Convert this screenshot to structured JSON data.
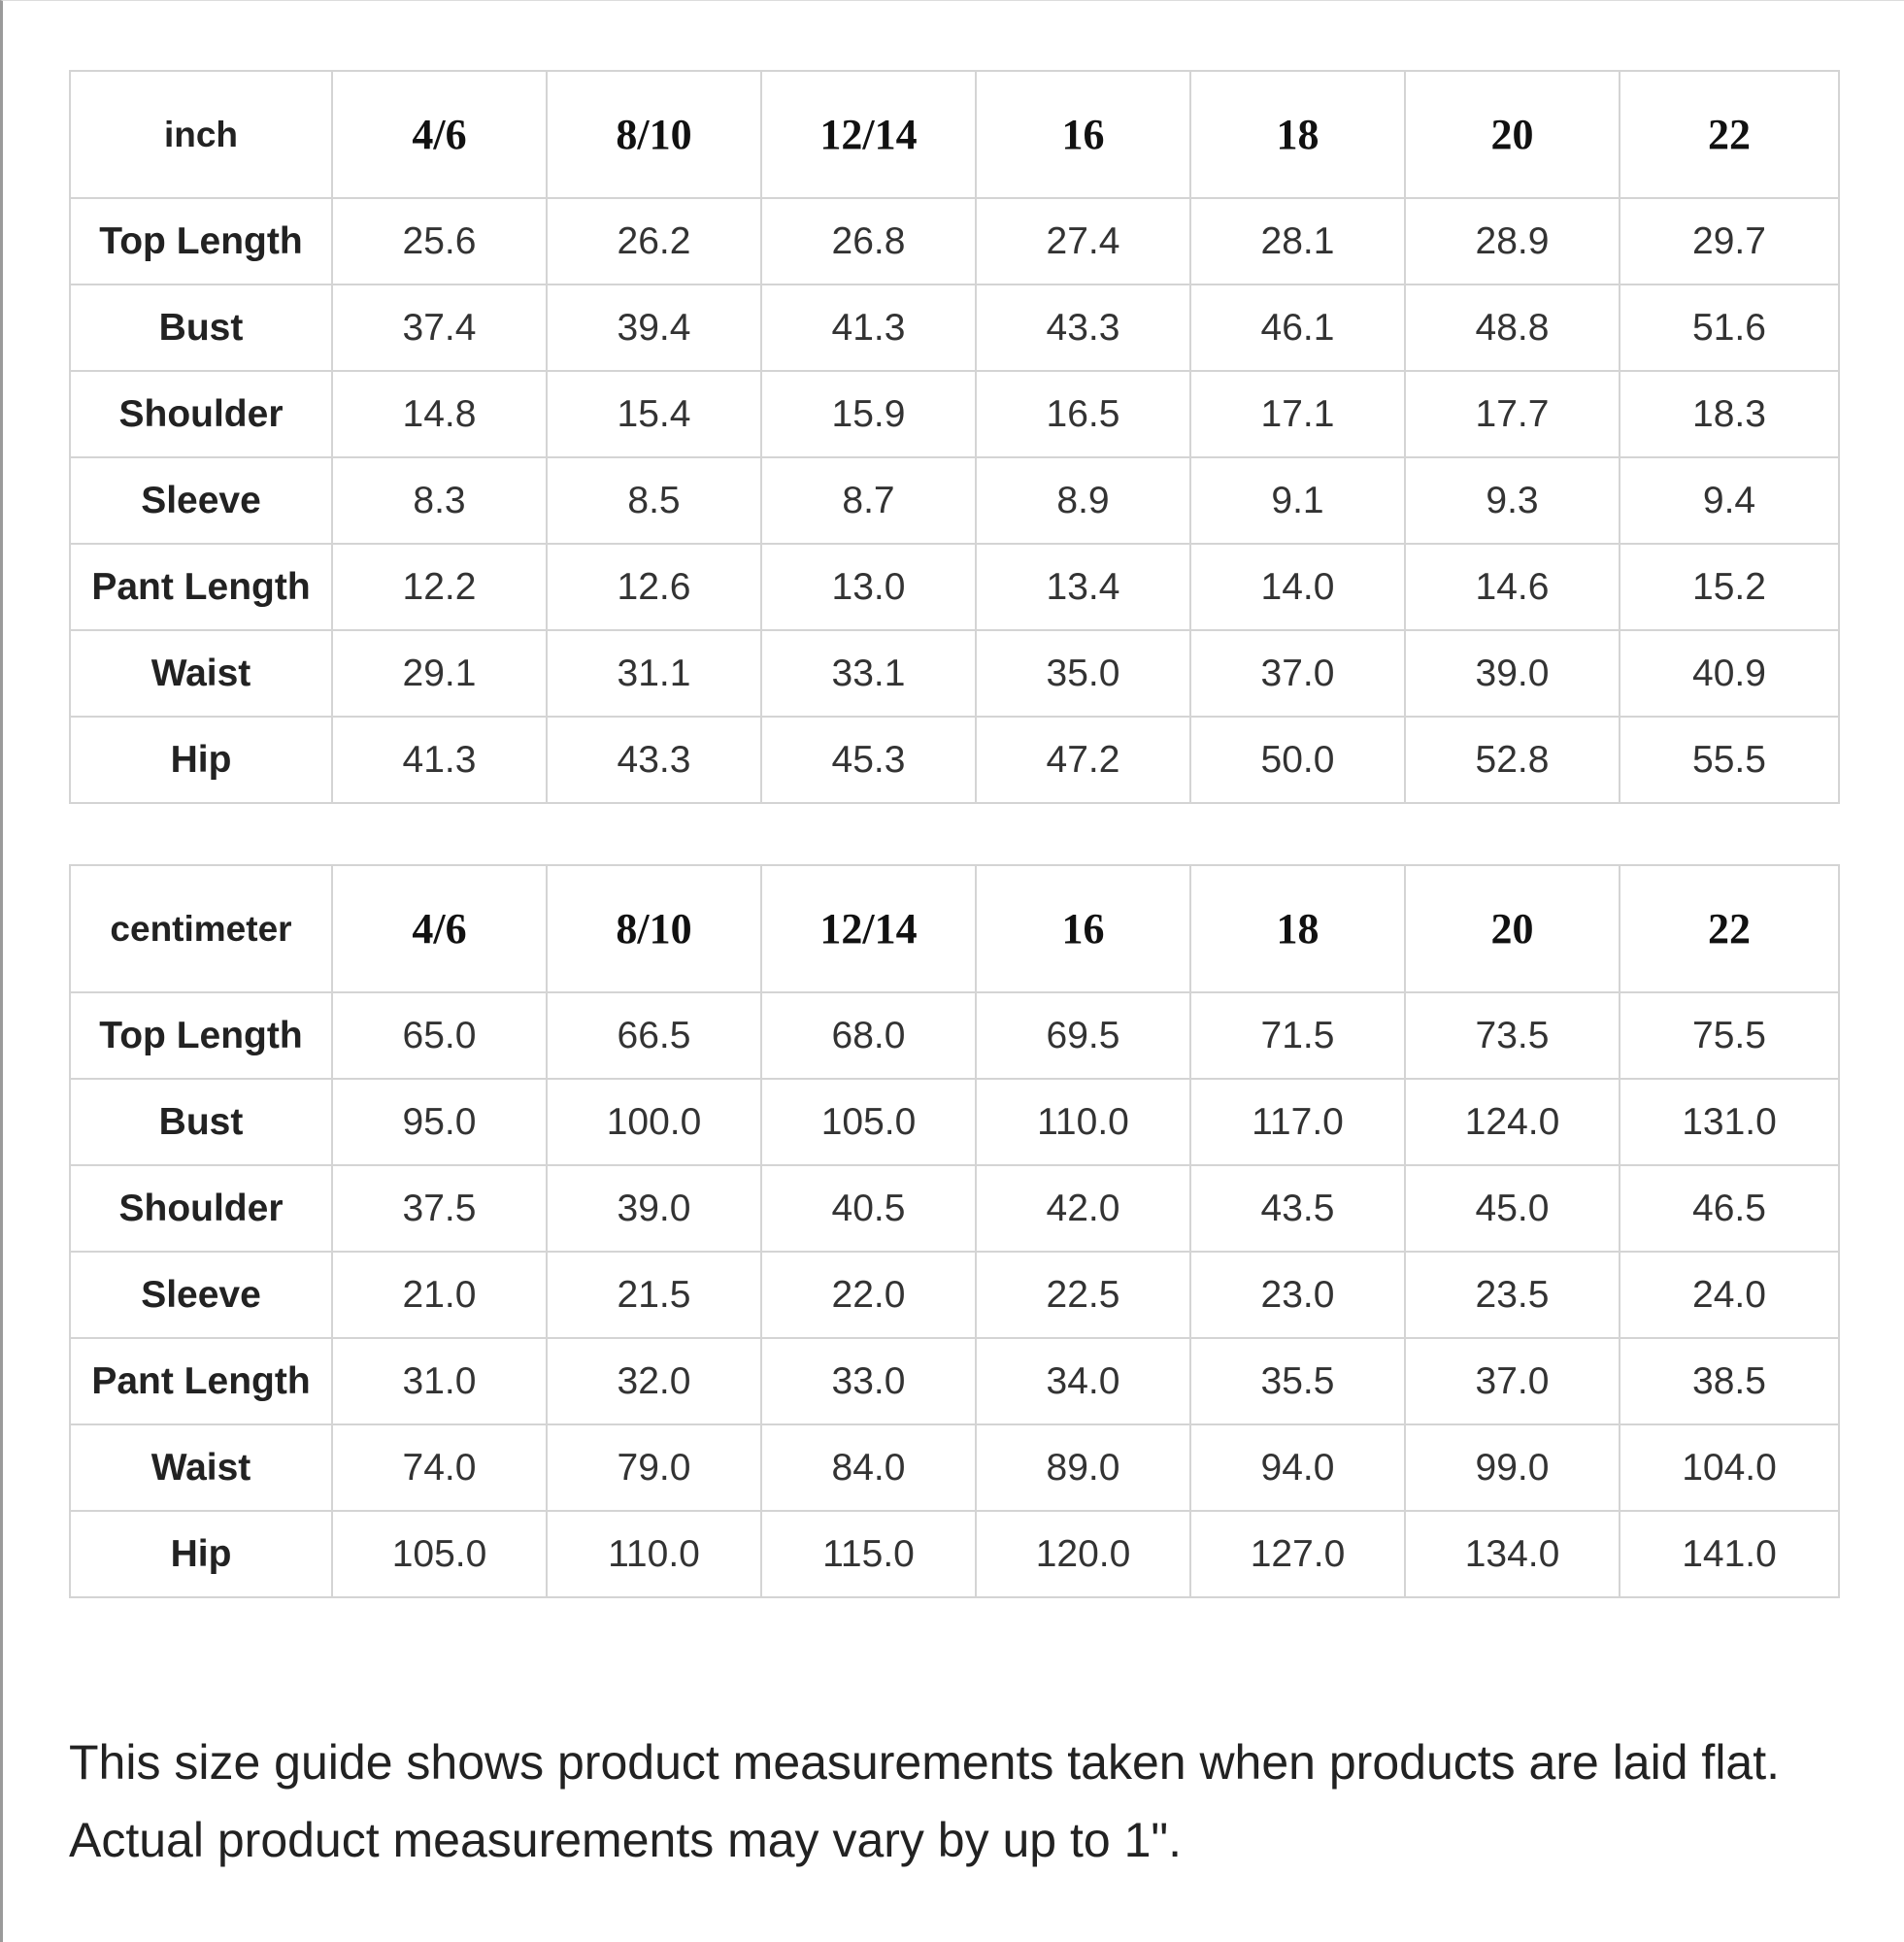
{
  "tables": [
    {
      "unit": "inch",
      "sizes": [
        "4/6",
        "8/10",
        "12/14",
        "16",
        "18",
        "20",
        "22"
      ],
      "rows": [
        {
          "label": "Top Length",
          "values": [
            "25.6",
            "26.2",
            "26.8",
            "27.4",
            "28.1",
            "28.9",
            "29.7"
          ]
        },
        {
          "label": "Bust",
          "values": [
            "37.4",
            "39.4",
            "41.3",
            "43.3",
            "46.1",
            "48.8",
            "51.6"
          ]
        },
        {
          "label": "Shoulder",
          "values": [
            "14.8",
            "15.4",
            "15.9",
            "16.5",
            "17.1",
            "17.7",
            "18.3"
          ]
        },
        {
          "label": "Sleeve",
          "values": [
            "8.3",
            "8.5",
            "8.7",
            "8.9",
            "9.1",
            "9.3",
            "9.4"
          ]
        },
        {
          "label": "Pant Length",
          "values": [
            "12.2",
            "12.6",
            "13.0",
            "13.4",
            "14.0",
            "14.6",
            "15.2"
          ]
        },
        {
          "label": "Waist",
          "values": [
            "29.1",
            "31.1",
            "33.1",
            "35.0",
            "37.0",
            "39.0",
            "40.9"
          ]
        },
        {
          "label": "Hip",
          "values": [
            "41.3",
            "43.3",
            "45.3",
            "47.2",
            "50.0",
            "52.8",
            "55.5"
          ]
        }
      ]
    },
    {
      "unit": "centimeter",
      "sizes": [
        "4/6",
        "8/10",
        "12/14",
        "16",
        "18",
        "20",
        "22"
      ],
      "rows": [
        {
          "label": "Top Length",
          "values": [
            "65.0",
            "66.5",
            "68.0",
            "69.5",
            "71.5",
            "73.5",
            "75.5"
          ]
        },
        {
          "label": "Bust",
          "values": [
            "95.0",
            "100.0",
            "105.0",
            "110.0",
            "117.0",
            "124.0",
            "131.0"
          ]
        },
        {
          "label": "Shoulder",
          "values": [
            "37.5",
            "39.0",
            "40.5",
            "42.0",
            "43.5",
            "45.0",
            "46.5"
          ]
        },
        {
          "label": "Sleeve",
          "values": [
            "21.0",
            "21.5",
            "22.0",
            "22.5",
            "23.0",
            "23.5",
            "24.0"
          ]
        },
        {
          "label": "Pant Length",
          "values": [
            "31.0",
            "32.0",
            "33.0",
            "34.0",
            "35.5",
            "37.0",
            "38.5"
          ]
        },
        {
          "label": "Waist",
          "values": [
            "74.0",
            "79.0",
            "84.0",
            "89.0",
            "94.0",
            "99.0",
            "104.0"
          ]
        },
        {
          "label": "Hip",
          "values": [
            "105.0",
            "110.0",
            "115.0",
            "120.0",
            "127.0",
            "134.0",
            "141.0"
          ]
        }
      ]
    }
  ],
  "note": "This size guide shows product measurements taken when products are laid flat. Actual product measurements may vary by up to 1\"."
}
